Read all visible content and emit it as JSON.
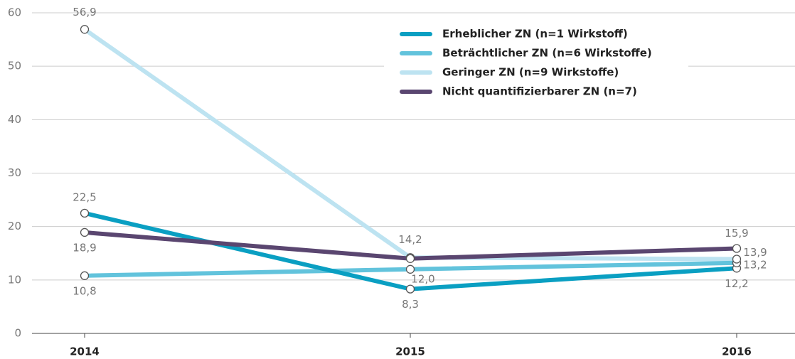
{
  "chart_data": {
    "type": "line",
    "categories": [
      "2014",
      "2015",
      "2016"
    ],
    "series": [
      {
        "name": "Erheblicher ZN (n=1 Wirkstoff)",
        "color": "#0a9fc2",
        "values": [
          22.5,
          8.3,
          12.2
        ],
        "value_labels": [
          "22,5",
          "8,3",
          "12,2"
        ]
      },
      {
        "name": "Beträchtlicher ZN (n=6 Wirkstoffe)",
        "color": "#62c3dc",
        "values": [
          10.8,
          12.0,
          13.2
        ],
        "value_labels": [
          "10,8",
          "12,0",
          "13,2"
        ]
      },
      {
        "name": "Geringer ZN (n=9 Wirkstoffe)",
        "color": "#bde3f1",
        "values": [
          56.9,
          14.2,
          13.9
        ],
        "value_labels": [
          "56,9",
          "14,2",
          "13,9"
        ]
      },
      {
        "name": "Nicht quantifizierbarer ZN (n=7)",
        "color": "#5a4670",
        "values": [
          18.9,
          14.0,
          15.9
        ],
        "value_labels": [
          "18,9",
          null,
          "15,9"
        ]
      }
    ],
    "ylim": [
      0,
      60
    ],
    "yticks": [
      0,
      10,
      20,
      30,
      40,
      50,
      60
    ],
    "grid": true,
    "legend": "top-right"
  }
}
